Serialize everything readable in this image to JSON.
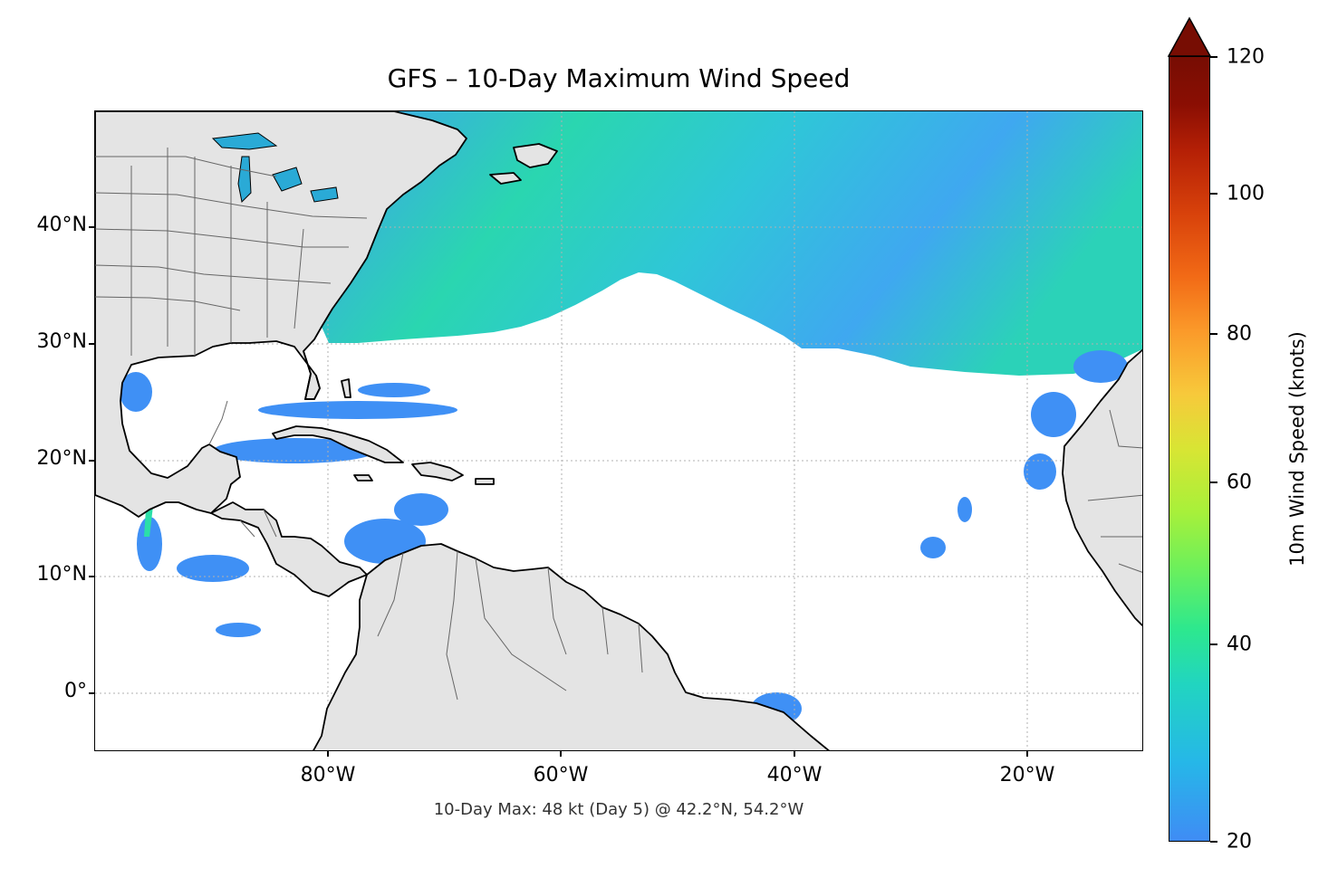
{
  "figure": {
    "title": "GFS – 10-Day Maximum Wind Speed",
    "footer": "10-Day Max: 48 kt (Day 5) @ 42.2°N, 54.2°W"
  },
  "map": {
    "extent": {
      "lon_min": -100,
      "lon_max": -10,
      "lat_min": -5,
      "lat_max": 50
    },
    "y_ticks": [
      {
        "lat": 40,
        "label": "40°N"
      },
      {
        "lat": 30,
        "label": "30°N"
      },
      {
        "lat": 20,
        "label": "20°N"
      },
      {
        "lat": 10,
        "label": "10°N"
      },
      {
        "lat": 0,
        "label": "0°"
      }
    ],
    "x_ticks": [
      {
        "lon": -80,
        "label": "80°W"
      },
      {
        "lon": -60,
        "label": "60°W"
      },
      {
        "lon": -40,
        "label": "40°W"
      },
      {
        "lon": -20,
        "label": "20°W"
      }
    ],
    "colors": {
      "land": "#e4e4e4",
      "coast": "#000000",
      "borders": "#666666",
      "grid": "#b0b0b0"
    },
    "max_point": {
      "lat": 42.2,
      "lon": -54.2,
      "value_kt": 48
    }
  },
  "colorbar": {
    "label": "10m Wind Speed (knots)",
    "min": 20,
    "max": 120,
    "extend": "max",
    "ticks": [
      {
        "value": 120,
        "label": "120"
      },
      {
        "value": 100,
        "label": "100"
      },
      {
        "value": 80,
        "label": "80"
      },
      {
        "value": 60,
        "label": "60"
      },
      {
        "value": 40,
        "label": "40"
      },
      {
        "value": 20,
        "label": "20"
      }
    ],
    "colors": {
      "low": "#3f8cf5",
      "mid": "#2de88e",
      "high": "#770d03"
    }
  }
}
